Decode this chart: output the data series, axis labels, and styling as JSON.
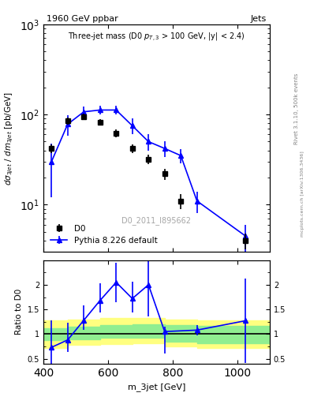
{
  "title_left": "1960 GeV ppbar",
  "title_right": "Jets",
  "watermark": "D0_2011_I895662",
  "rivet_text": "Rivet 3.1.10, 500k events",
  "arxiv_text": "mcplots.cern.ch [arXiv:1306.3436]",
  "ylabel_ratio": "Ratio to D0",
  "xlabel": "m_3jet [GeV]",
  "xlim": [
    400,
    1100
  ],
  "main_ylim": [
    3,
    1000
  ],
  "ratio_ylim": [
    0.4,
    2.5
  ],
  "d0_x": [
    425,
    475,
    525,
    575,
    625,
    675,
    725,
    775,
    825,
    1025
  ],
  "d0_y": [
    42,
    85,
    95,
    82,
    62,
    42,
    32,
    22,
    11,
    4.0
  ],
  "d0_yerr": [
    5,
    8,
    8,
    7,
    6,
    5,
    4,
    3,
    2,
    0.8
  ],
  "pythia_x": [
    425,
    475,
    525,
    575,
    625,
    675,
    725,
    775,
    825,
    875,
    1025
  ],
  "pythia_y": [
    30,
    78,
    107,
    112,
    112,
    75,
    50,
    42,
    35,
    11,
    4.5
  ],
  "pythia_yerr": [
    18,
    20,
    15,
    12,
    12,
    15,
    10,
    8,
    6,
    3,
    1.5
  ],
  "ratio_x": [
    425,
    475,
    525,
    575,
    625,
    675,
    725,
    775,
    875,
    1025
  ],
  "ratio_y": [
    0.73,
    0.88,
    1.28,
    1.68,
    2.05,
    1.72,
    2.0,
    1.05,
    1.08,
    1.27
  ],
  "ratio_yerr_lo": [
    0.55,
    0.25,
    0.2,
    0.25,
    0.4,
    0.28,
    0.65,
    0.45,
    0.1,
    0.85
  ],
  "ratio_yerr_hi": [
    0.55,
    0.35,
    0.3,
    0.35,
    0.4,
    0.35,
    0.65,
    0.1,
    0.1,
    0.85
  ],
  "band_x": [
    400,
    475,
    575,
    675,
    775,
    875,
    1100
  ],
  "band_green_lo": [
    0.88,
    0.9,
    0.92,
    0.93,
    0.85,
    0.82,
    0.8
  ],
  "band_green_hi": [
    1.12,
    1.15,
    1.18,
    1.2,
    1.18,
    1.16,
    1.14
  ],
  "band_yellow_lo": [
    0.72,
    0.78,
    0.8,
    0.82,
    0.75,
    0.72,
    0.7
  ],
  "band_yellow_hi": [
    1.28,
    1.3,
    1.32,
    1.32,
    1.3,
    1.28,
    1.26
  ],
  "d0_color": "black",
  "pythia_color": "blue",
  "green_color": "#90EE90",
  "yellow_color": "#FFFF80"
}
